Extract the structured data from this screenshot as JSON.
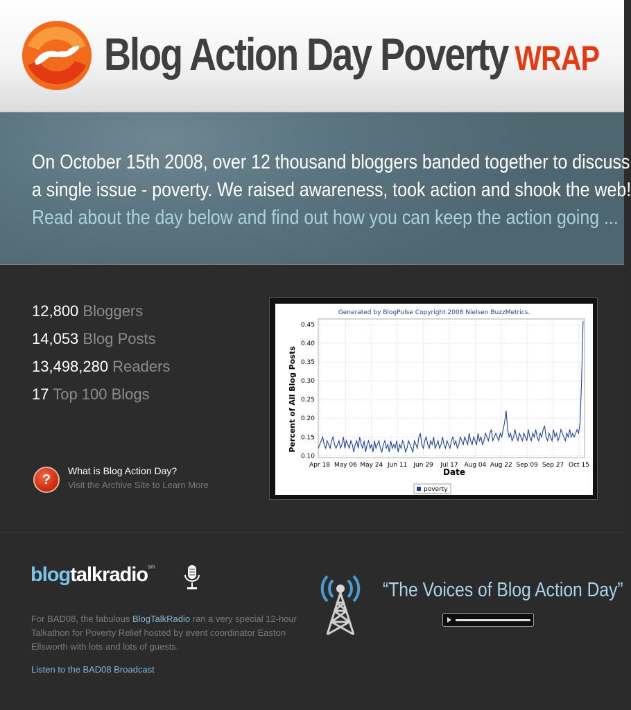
{
  "header": {
    "title": "Blog Action Day Poverty",
    "title_suffix": "WRAP",
    "logo_icon": "blog-action-day-logo-icon"
  },
  "intro": {
    "line1": "On October 15th 2008, over 12 thousand bloggers banded together to discuss",
    "line2": "a single issue - poverty. We raised awareness, took action and shook the web!",
    "line3": "Read about the day below and find out how you can keep the action going ..."
  },
  "stats": [
    {
      "number": "12,800",
      "label": "Bloggers"
    },
    {
      "number": "14,053",
      "label": "Blog Posts"
    },
    {
      "number": "13,498,280",
      "label": "Readers"
    },
    {
      "number": "17",
      "label": "Top 100 Blogs"
    }
  ],
  "help": {
    "icon": "question-icon",
    "title": "What is Blog Action Day?",
    "link": "Visit the Archive Site to Learn More"
  },
  "chart_data": {
    "type": "line",
    "title": "Generated by BlogPulse Copyright 2008 Nielsen BuzzMetrics.",
    "xlabel": "Date",
    "ylabel": "Percent of All Blog Posts",
    "x_ticks": [
      "Apr 18",
      "May 06",
      "May 24",
      "Jun 11",
      "Jun 29",
      "Jul 17",
      "Aug 04",
      "Aug 22",
      "Sep 09",
      "Sep 27",
      "Oct 15"
    ],
    "y_ticks": [
      "0.10",
      "0.15",
      "0.20",
      "0.25",
      "0.30",
      "0.35",
      "0.40",
      "0.45"
    ],
    "ylim": [
      0.095,
      0.465
    ],
    "xlim": [
      0,
      180
    ],
    "grid": true,
    "legend": "bottom",
    "series": [
      {
        "name": "poverty",
        "color": "#1f3fa0",
        "values": [
          0.12,
          0.13,
          0.14,
          0.15,
          0.13,
          0.12,
          0.14,
          0.13,
          0.12,
          0.14,
          0.15,
          0.13,
          0.12,
          0.13,
          0.14,
          0.12,
          0.13,
          0.15,
          0.12,
          0.14,
          0.13,
          0.12,
          0.14,
          0.13,
          0.11,
          0.13,
          0.14,
          0.12,
          0.15,
          0.13,
          0.12,
          0.14,
          0.11,
          0.13,
          0.14,
          0.12,
          0.13,
          0.11,
          0.14,
          0.12,
          0.13,
          0.14,
          0.12,
          0.11,
          0.13,
          0.14,
          0.12,
          0.13,
          0.11,
          0.14,
          0.12,
          0.13,
          0.12,
          0.14,
          0.11,
          0.13,
          0.12,
          0.14,
          0.13,
          0.11,
          0.12,
          0.14,
          0.13,
          0.12,
          0.11,
          0.14,
          0.13,
          0.12,
          0.15,
          0.16,
          0.13,
          0.12,
          0.14,
          0.15,
          0.13,
          0.12,
          0.14,
          0.13,
          0.15,
          0.12,
          0.13,
          0.14,
          0.12,
          0.13,
          0.15,
          0.13,
          0.12,
          0.14,
          0.13,
          0.12,
          0.14,
          0.15,
          0.13,
          0.14,
          0.12,
          0.13,
          0.15,
          0.14,
          0.13,
          0.15,
          0.14,
          0.13,
          0.16,
          0.14,
          0.13,
          0.15,
          0.14,
          0.13,
          0.16,
          0.14,
          0.15,
          0.13,
          0.14,
          0.16,
          0.15,
          0.14,
          0.16,
          0.17,
          0.14,
          0.15,
          0.16,
          0.15,
          0.14,
          0.16,
          0.15,
          0.17,
          0.19,
          0.22,
          0.17,
          0.15,
          0.16,
          0.14,
          0.15,
          0.17,
          0.15,
          0.14,
          0.16,
          0.15,
          0.14,
          0.16,
          0.15,
          0.14,
          0.17,
          0.15,
          0.14,
          0.16,
          0.15,
          0.17,
          0.15,
          0.14,
          0.16,
          0.15,
          0.17,
          0.18,
          0.15,
          0.14,
          0.16,
          0.15,
          0.14,
          0.17,
          0.15,
          0.16,
          0.14,
          0.15,
          0.17,
          0.16,
          0.15,
          0.14,
          0.16,
          0.15,
          0.17,
          0.15,
          0.16,
          0.15,
          0.16,
          0.17,
          0.16,
          0.19,
          0.3,
          0.46
        ]
      }
    ]
  },
  "radio": {
    "brand_blog": "blog",
    "brand_talk": "talkradio",
    "brand_sm": "sm",
    "mic_icon": "microphone-icon",
    "tower_icon": "radio-tower-icon",
    "desc_before": "For BAD08, the fabulous ",
    "desc_highlight": "BlogTalkRadio",
    "desc_after": " ran a very special 12-hour Talkathon for Poverty Relief hosted by event coordinator Easton Ellsworth with lots and lots of guests.",
    "listen": "Listen to the BAD08 Broadcast",
    "voices": "“The Voices of Blog Action Day”",
    "player_icon": "play-icon"
  }
}
